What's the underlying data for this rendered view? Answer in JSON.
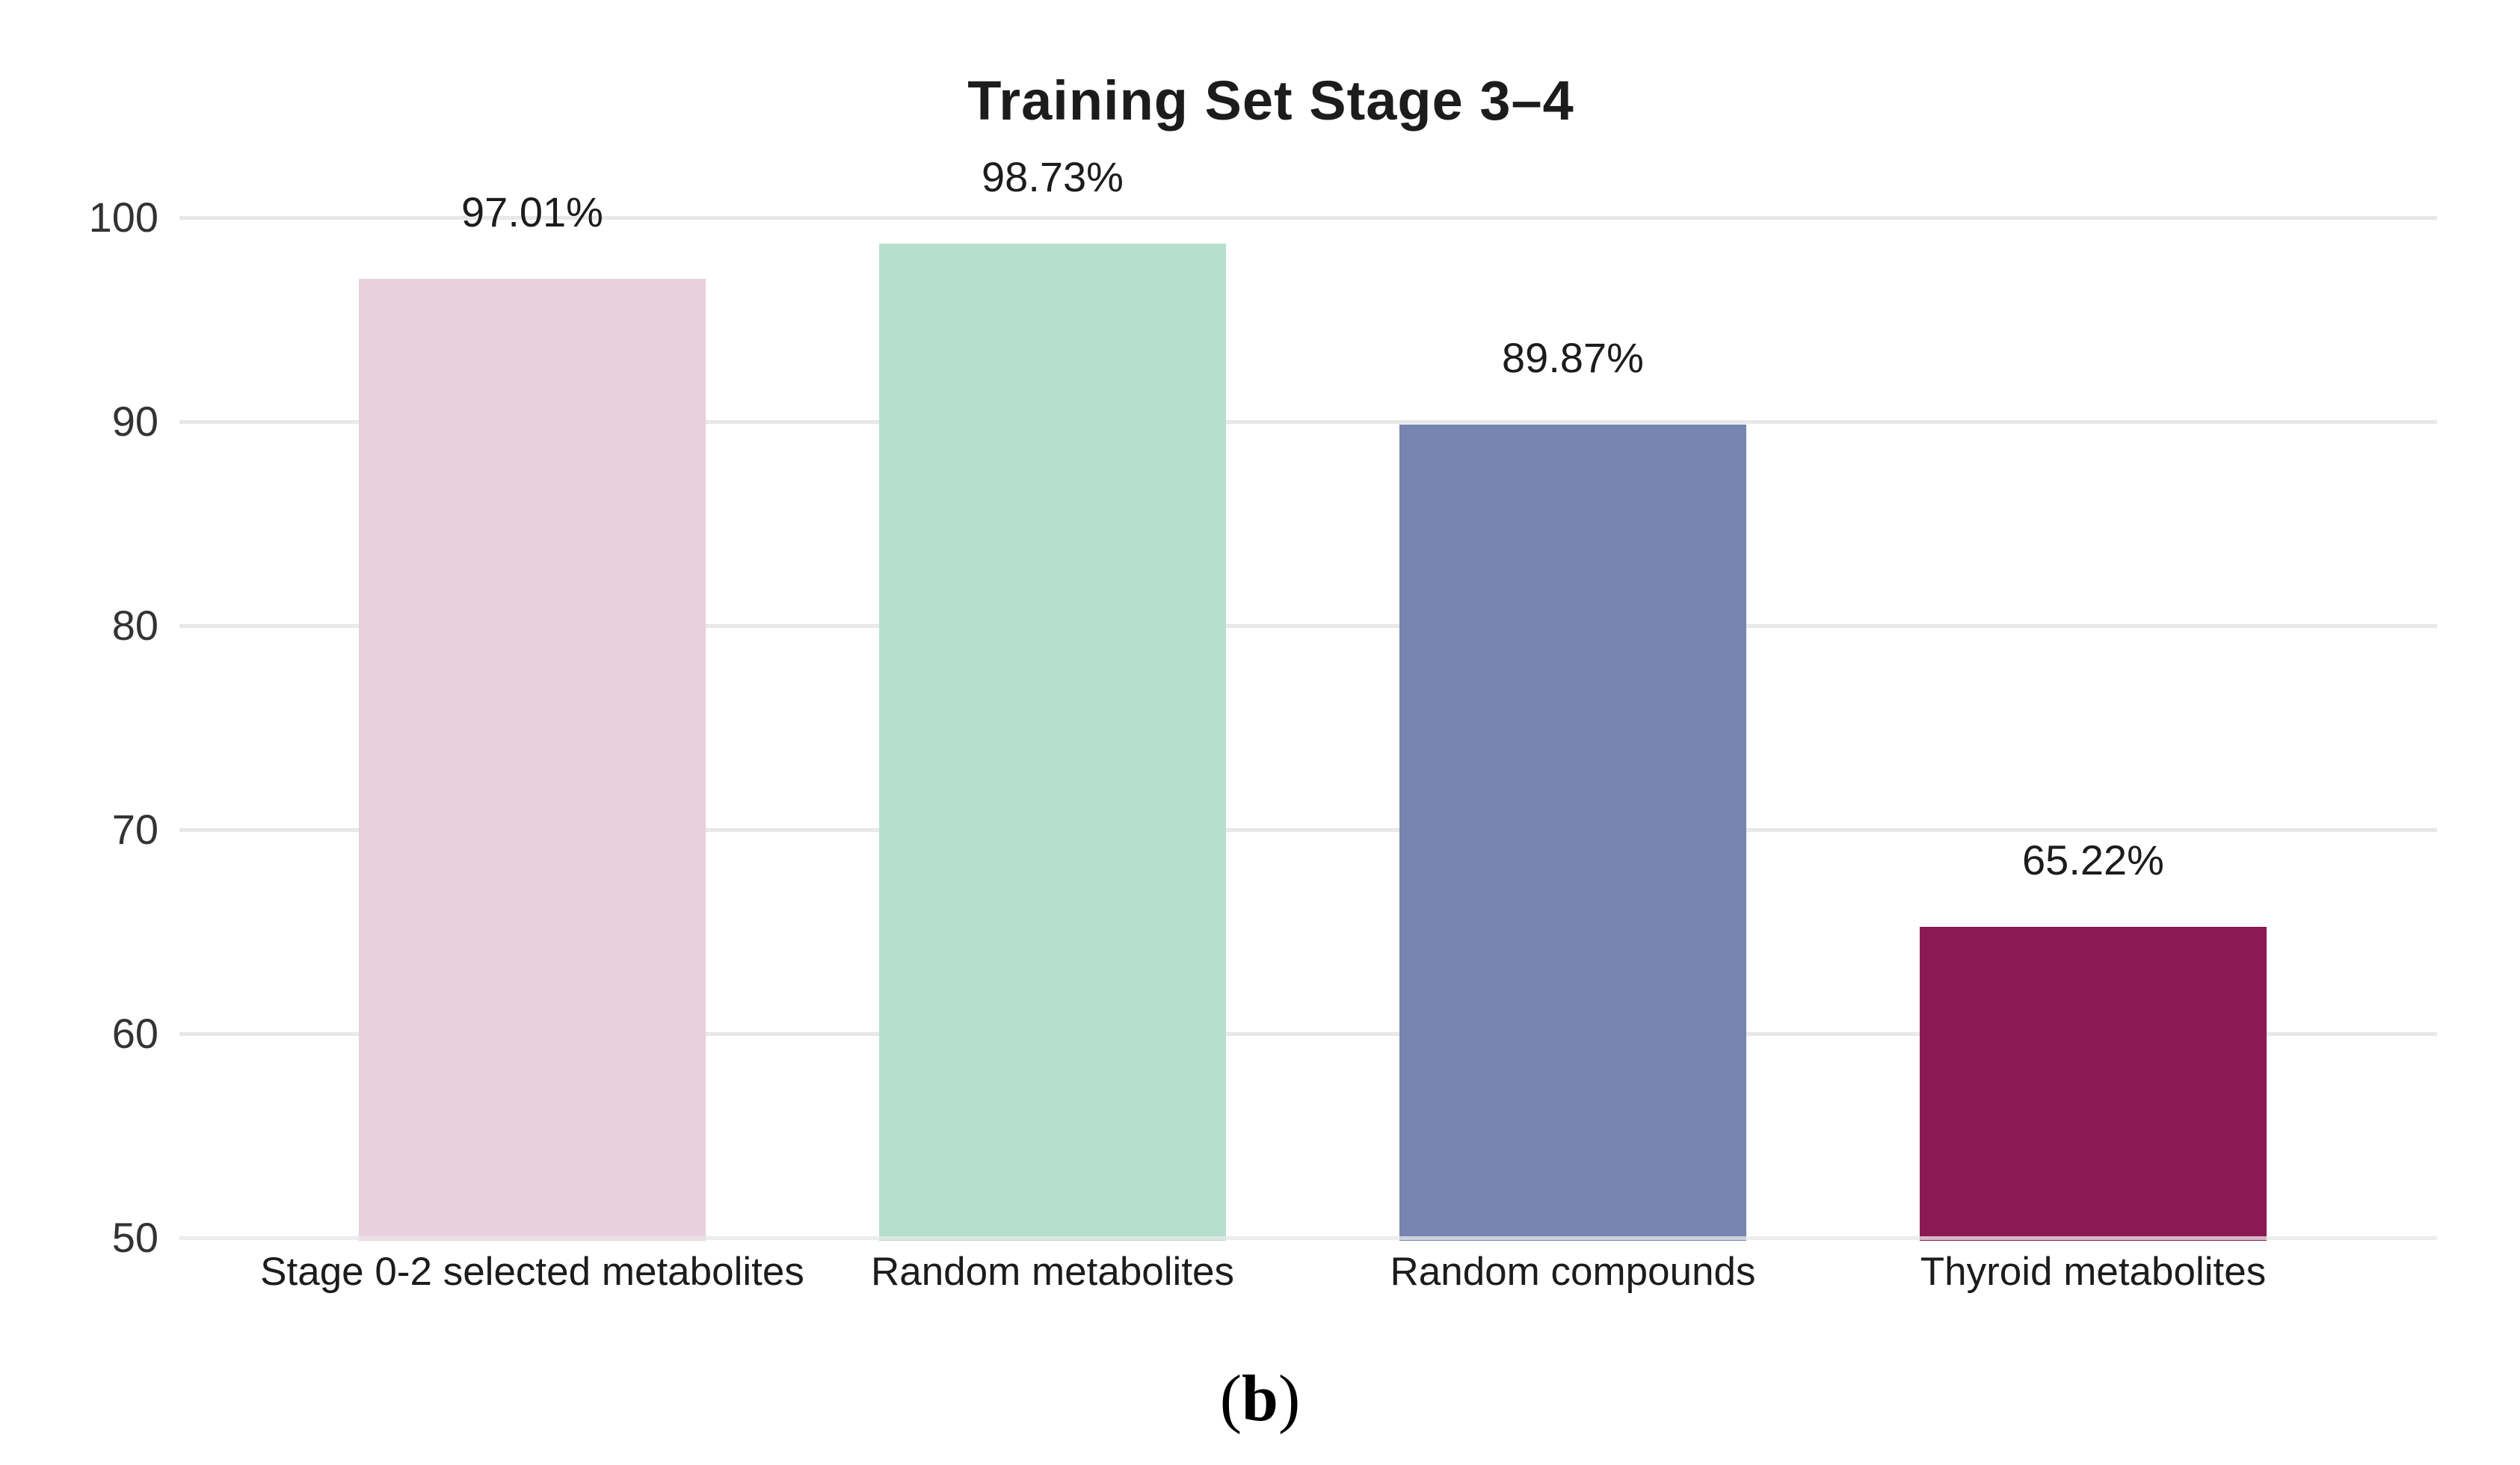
{
  "chart_data": {
    "type": "bar",
    "title": "Training Set Stage 3–4",
    "categories": [
      "Stage 0-2 selected metabolites",
      "Random metabolites",
      "Random compounds",
      "Thyroid metabolites"
    ],
    "values": [
      97.01,
      98.73,
      89.87,
      65.22
    ],
    "value_labels": [
      "97.01%",
      "98.73%",
      "89.87%",
      "65.22%"
    ],
    "bar_colors": [
      "#e9d0dc",
      "#b7dfce",
      "#7884b1",
      "#8c1a52"
    ],
    "ylim": [
      50,
      100
    ],
    "yticks": [
      50,
      60,
      70,
      80,
      90,
      100
    ],
    "xlabel": "",
    "ylabel": "",
    "grid": true,
    "gridline_color": "#e8e8e8",
    "legend_position": "none"
  },
  "figure": {
    "caption_open": "(",
    "caption_letter": "b",
    "caption_close": ")"
  },
  "colors": {
    "background": "#ffffff",
    "title_text": "#1c1c1c",
    "tick_text": "#333333",
    "label_text": "#1c1c1c"
  }
}
